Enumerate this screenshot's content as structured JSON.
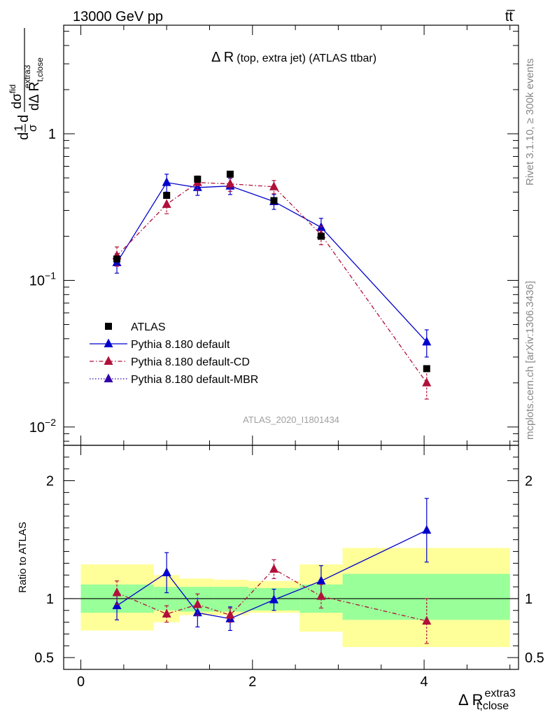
{
  "header": {
    "left": "13000 GeV pp",
    "right": "tt̅"
  },
  "side_labels": {
    "rivet": "Rivet 3.1.10, ≥ 300k events",
    "mcplots": "mcplots.cern.ch [arXiv:1306.3436]"
  },
  "chart_data": {
    "type": "scatter",
    "title_main": "Δ R",
    "title_sub": "(top, extra jet) (ATLAS ttbar)",
    "analysis_id": "ATLAS_2020_I1801434",
    "xlabel": "Δ R",
    "xlabel_sup": "extra3",
    "xlabel_sub": "t,close",
    "ylabel_top": {
      "prefix": "d",
      "frac1_num": "1",
      "frac1_den": "σ",
      "mid": "d",
      "frac2_num": "dσ",
      "frac2_num_sup": "fid",
      "frac2_den": "dΔ R",
      "frac2_den_sub": "t,close",
      "frac2_den_sup": "extra3"
    },
    "ylabel_ratio": "Ratio to ATLAS",
    "xlim": [
      -0.2,
      5.1
    ],
    "ylim_top": [
      0.0075,
      5.5
    ],
    "ylog_top": true,
    "ylim_ratio": [
      0.4,
      2.3
    ],
    "x_ticks": [
      {
        "value": 0,
        "label": "0"
      },
      {
        "value": 2,
        "label": "2"
      },
      {
        "value": 4,
        "label": "4"
      }
    ],
    "y_ticks_top": [
      {
        "value": 0.01,
        "base": "10",
        "exp": "−2"
      },
      {
        "value": 0.1,
        "base": "10",
        "exp": "−1"
      },
      {
        "value": 1,
        "base": "1",
        "exp": ""
      }
    ],
    "y_ticks_ratio": [
      {
        "value": 0.5,
        "label": "0.5"
      },
      {
        "value": 1,
        "label": "1"
      },
      {
        "value": 2,
        "label": "2"
      }
    ],
    "legend_position": "lower-left",
    "bins": [
      0.0,
      0.85,
      1.15,
      1.55,
      1.95,
      2.55,
      3.05,
      5.0
    ],
    "series": [
      {
        "name": "ATLAS",
        "color": "#000000",
        "marker": "square",
        "line": "none",
        "x": [
          0.42,
          1.0,
          1.36,
          1.74,
          2.25,
          2.8,
          4.03
        ],
        "y": [
          0.14,
          0.38,
          0.49,
          0.53,
          0.35,
          0.2,
          0.025
        ]
      },
      {
        "name": "Pythia 8.180 default",
        "color": "#0000cc",
        "marker": "triangle",
        "line": "solid",
        "x": [
          0.42,
          1.0,
          1.36,
          1.74,
          2.25,
          2.8,
          4.03
        ],
        "y": [
          0.132,
          0.465,
          0.43,
          0.44,
          0.345,
          0.23,
          0.038
        ],
        "err": [
          0.02,
          0.065,
          0.05,
          0.055,
          0.04,
          0.035,
          0.008
        ],
        "ratio": [
          0.94,
          1.22,
          0.88,
          0.83,
          0.99,
          1.15,
          1.58
        ],
        "ratio_err": [
          0.12,
          0.17,
          0.12,
          0.1,
          0.09,
          0.13,
          0.27
        ]
      },
      {
        "name": "Pythia 8.180 default-CD",
        "color": "#b0103a",
        "marker": "triangle",
        "line": "dashdot",
        "x": [
          0.42,
          1.0,
          1.36,
          1.74,
          2.25,
          2.8,
          4.03
        ],
        "y": [
          0.147,
          0.33,
          0.465,
          0.455,
          0.435,
          0.205,
          0.02
        ],
        "err": [
          0.022,
          0.045,
          0.05,
          0.05,
          0.045,
          0.03,
          0.0045
        ],
        "ratio": [
          1.05,
          0.87,
          0.95,
          0.86,
          1.25,
          1.02,
          0.81
        ],
        "ratio_err": [
          0.1,
          0.07,
          0.09,
          0.06,
          0.08,
          0.1,
          0.19
        ]
      },
      {
        "name": "Pythia 8.180 default-MBR",
        "color": "#3300aa",
        "marker": "triangle",
        "line": "dotted",
        "x": [],
        "y": []
      }
    ],
    "uncertainty_bands": {
      "inner_color": "#99ff99",
      "outer_color": "#ffff99",
      "inner": [
        [
          0.88,
          1.12
        ],
        [
          0.9,
          1.1
        ],
        [
          0.89,
          1.1
        ],
        [
          0.89,
          1.1
        ],
        [
          0.9,
          1.09
        ],
        [
          0.88,
          1.12
        ],
        [
          0.82,
          1.21
        ]
      ],
      "outer": [
        [
          0.73,
          1.29
        ],
        [
          0.8,
          1.2
        ],
        [
          0.86,
          1.17
        ],
        [
          0.86,
          1.16
        ],
        [
          0.88,
          1.15
        ],
        [
          0.72,
          1.29
        ],
        [
          0.59,
          1.43
        ]
      ]
    }
  }
}
